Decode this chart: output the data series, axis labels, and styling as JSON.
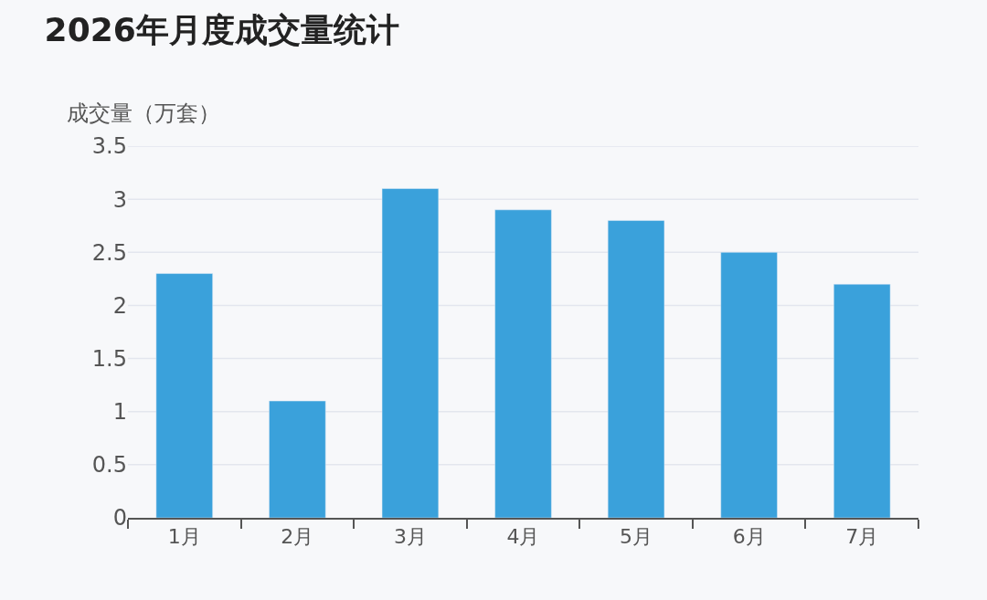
{
  "chart_data": {
    "type": "bar",
    "title": "2026年月度成交量统计",
    "ylabel": "成交量（万套）",
    "categories": [
      "1月",
      "2月",
      "3月",
      "4月",
      "5月",
      "6月",
      "7月"
    ],
    "values": [
      2.3,
      1.1,
      3.1,
      2.9,
      2.8,
      2.5,
      2.2
    ],
    "color": "#3aa1db",
    "ylim": [
      0,
      3.5
    ],
    "yticks": [
      0,
      0.5,
      1,
      1.5,
      2,
      2.5,
      3,
      3.5
    ],
    "grid": "y"
  }
}
